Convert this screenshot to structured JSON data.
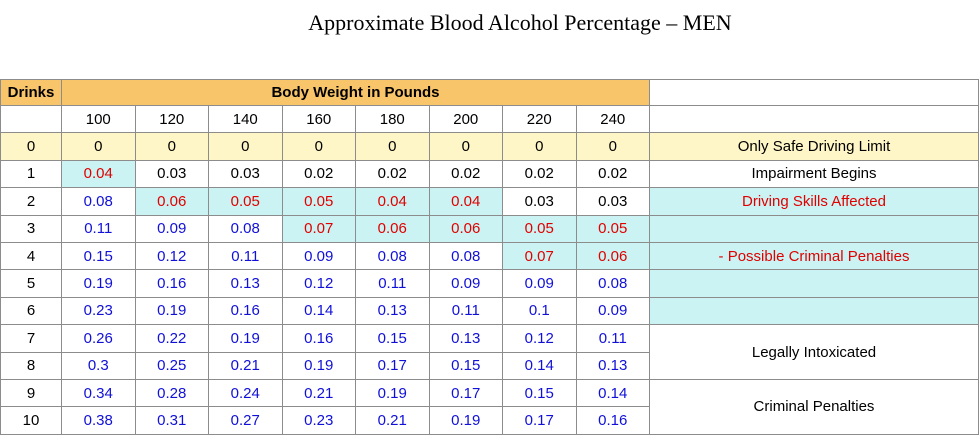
{
  "title": "Approximate  Blood Alcohol  Percentage – MEN",
  "table": {
    "drinks_header": "Drinks",
    "weight_header": "Body Weight in Pounds",
    "weights": [
      "100",
      "120",
      "140",
      "160",
      "180",
      "200",
      "220",
      "240"
    ],
    "rows": [
      {
        "drinks": "0",
        "values": [
          "0",
          "0",
          "0",
          "0",
          "0",
          "0",
          "0",
          "0"
        ],
        "colors": [
          "k",
          "k",
          "k",
          "k",
          "k",
          "k",
          "k",
          "k"
        ]
      },
      {
        "drinks": "1",
        "values": [
          "0.04",
          "0.03",
          "0.03",
          "0.02",
          "0.02",
          "0.02",
          "0.02",
          "0.02"
        ],
        "colors": [
          "r",
          "k",
          "k",
          "k",
          "k",
          "k",
          "k",
          "k"
        ]
      },
      {
        "drinks": "2",
        "values": [
          "0.08",
          "0.06",
          "0.05",
          "0.05",
          "0.04",
          "0.04",
          "0.03",
          "0.03"
        ],
        "colors": [
          "b",
          "r",
          "r",
          "r",
          "r",
          "r",
          "k",
          "k"
        ]
      },
      {
        "drinks": "3",
        "values": [
          "0.11",
          "0.09",
          "0.08",
          "0.07",
          "0.06",
          "0.06",
          "0.05",
          "0.05"
        ],
        "colors": [
          "b",
          "b",
          "b",
          "r",
          "r",
          "r",
          "r",
          "r"
        ]
      },
      {
        "drinks": "4",
        "values": [
          "0.15",
          "0.12",
          "0.11",
          "0.09",
          "0.08",
          "0.08",
          "0.07",
          "0.06"
        ],
        "colors": [
          "b",
          "b",
          "b",
          "b",
          "b",
          "b",
          "r",
          "r"
        ]
      },
      {
        "drinks": "5",
        "values": [
          "0.19",
          "0.16",
          "0.13",
          "0.12",
          "0.11",
          "0.09",
          "0.09",
          "0.08"
        ],
        "colors": [
          "b",
          "b",
          "b",
          "b",
          "b",
          "b",
          "b",
          "b"
        ]
      },
      {
        "drinks": "6",
        "values": [
          "0.23",
          "0.19",
          "0.16",
          "0.14",
          "0.13",
          "0.11",
          "0.1",
          "0.09"
        ],
        "colors": [
          "b",
          "b",
          "b",
          "b",
          "b",
          "b",
          "b",
          "b"
        ]
      },
      {
        "drinks": "7",
        "values": [
          "0.26",
          "0.22",
          "0.19",
          "0.16",
          "0.15",
          "0.13",
          "0.12",
          "0.11"
        ],
        "colors": [
          "b",
          "b",
          "b",
          "b",
          "b",
          "b",
          "b",
          "b"
        ]
      },
      {
        "drinks": "8",
        "values": [
          "0.3",
          "0.25",
          "0.21",
          "0.19",
          "0.17",
          "0.15",
          "0.14",
          "0.13"
        ],
        "colors": [
          "b",
          "b",
          "b",
          "b",
          "b",
          "b",
          "b",
          "b"
        ]
      },
      {
        "drinks": "9",
        "values": [
          "0.34",
          "0.28",
          "0.24",
          "0.21",
          "0.19",
          "0.17",
          "0.15",
          "0.14"
        ],
        "colors": [
          "b",
          "b",
          "b",
          "b",
          "b",
          "b",
          "b",
          "b"
        ]
      },
      {
        "drinks": "10",
        "values": [
          "0.38",
          "0.31",
          "0.27",
          "0.23",
          "0.21",
          "0.19",
          "0.17",
          "0.16"
        ],
        "colors": [
          "b",
          "b",
          "b",
          "b",
          "b",
          "b",
          "b",
          "b"
        ]
      }
    ],
    "status": {
      "safe": "Only Safe Driving Limit",
      "impairment": "Impairment Begins",
      "driving_skills": "Driving Skills Affected",
      "possible_penalties": "- Possible Criminal Penalties",
      "legally_intoxicated": "Legally Intoxicated",
      "criminal_penalties": "Criminal Penalties"
    }
  },
  "colors": {
    "header_gold": "#f9c56a",
    "zero_row_cream": "#fff6c7",
    "highlight_cyan": "#ccf3f3",
    "text_red": "#e00000",
    "text_blue": "#1010d8"
  }
}
